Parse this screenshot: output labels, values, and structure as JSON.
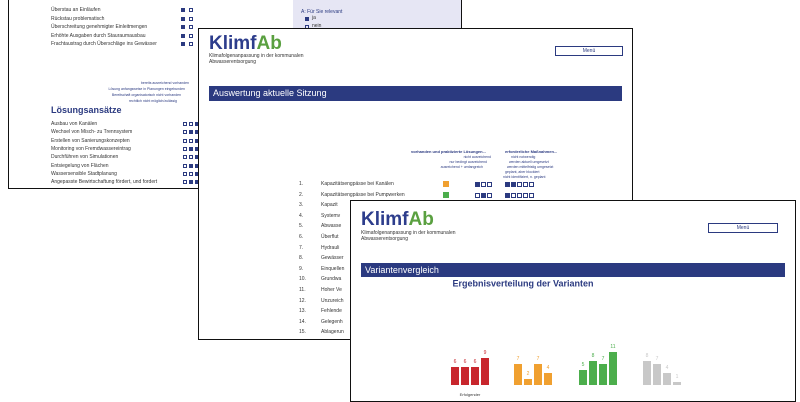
{
  "back_window": {
    "problems": [
      "Überstau an Einläufen",
      "Rückstau problematisch",
      "Überschreitung genehmigter Einleitmengen",
      "Erhöhte Ausgaben durch Stauraumausbau",
      "Frachtaustrag durch Überschläge ins Gewässer"
    ],
    "column_labels": [
      "bereits ausreichend vorhanden",
      "Lösung anfangsweise in Planungen eingebunden",
      "Bereitschaft organisatorisch nicht vorhanden",
      "rechtlich nicht möglich/zulässig"
    ],
    "section_title": "Lösungsansätze",
    "solutions": [
      "Ausbau von Kanälen",
      "Wechsel von Misch- zu Trennsystem",
      "Erstellen von Sanierungskonzepten",
      "Monitoring von Fremdwassereintrag",
      "Durchführen von Simulationen",
      "Entsiegelung von Flächen",
      "Wassersensible Stadtplanung",
      "Angepasste Bewirtschaftung fördert, und fordert"
    ],
    "panel": {
      "header": "A: Für Sie relevant",
      "options": [
        "ja",
        "nein"
      ]
    }
  },
  "middle_window": {
    "logo": {
      "part1": "Klimf",
      "part2": "Ab"
    },
    "subtitle": [
      "Klimafolgenanpassung in der kommunalen",
      "Abwasserentsorgung"
    ],
    "menu_button": "Menü",
    "banner": "Auswertung aktuelle Sitzung",
    "column_headers": [
      "vorhanden und praktizierte Lösungen...",
      "erforderliche Maßnahmen..."
    ],
    "left_labels": [
      "nicht ausreichend",
      "nur bedingt ausreichend",
      "ausreichend + umfangreich"
    ],
    "right_labels": [
      "nicht notwendig",
      "werden aktuell umgesetzt",
      "werden mittelfristig umgesetzt",
      "geplant, aber blockiert",
      "nicht identifiziert, n. geplant"
    ],
    "numbers": [
      "1.",
      "2.",
      "3.",
      "4.",
      "5.",
      "6.",
      "7.",
      "8.",
      "9.",
      "10.",
      "11.",
      "12.",
      "13.",
      "14.",
      "15."
    ],
    "items": [
      "Kapazitätsengpässe bei Kanälen",
      "Kapazitätsengpässe bei Pumpwerken",
      "Kapazit",
      "Systemv",
      "Abwasse",
      "Überflut",
      "Hydrauli",
      "Gewässer",
      "Einquellen",
      "Grundwa",
      "Hoher Ve",
      "Unzureich",
      "Fehlende",
      "Gelegenh",
      "Ablagerun"
    ]
  },
  "front_window": {
    "logo": {
      "part1": "Klimf",
      "part2": "Ab"
    },
    "subtitle": [
      "Klimafolgenanpassung in der kommunalen",
      "Abwasserentsorgung"
    ],
    "menu_button": "Menü",
    "banner": "Variantenvergleich",
    "chart_data": {
      "type": "bar",
      "title": "Ergebnisverteilung der Varianten",
      "series": [
        {
          "color": "#c8262d",
          "values": [
            6,
            6,
            6,
            9
          ]
        },
        {
          "color": "#f0a030",
          "values": [
            7,
            2,
            7,
            4
          ]
        },
        {
          "color": "#4cae4c",
          "values": [
            5,
            8,
            7,
            11
          ]
        },
        {
          "color": "#c8c8c8",
          "values": [
            8,
            7,
            4,
            1
          ]
        }
      ],
      "group_labels": [
        "Erfolgender"
      ],
      "ylim": [
        0,
        12
      ]
    }
  }
}
